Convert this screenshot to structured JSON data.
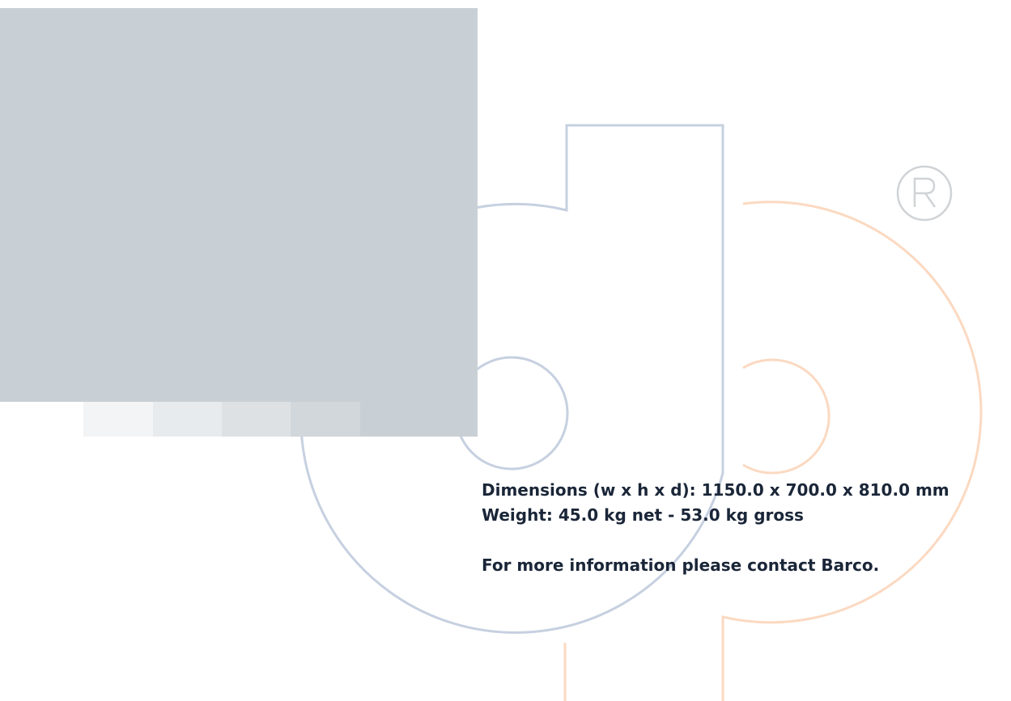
{
  "colors": {
    "photo_placeholder": "#c9d0d5",
    "swatches": [
      "#f3f4f5",
      "#e8ebed",
      "#dde1e4",
      "#d2d7db",
      "#c9d0d5"
    ],
    "watermark_blue": "#c6d0e0",
    "watermark_orange": "#fbd9c1",
    "text": "#1a2638"
  },
  "watermark": {
    "icon": "dp-logo-watermark",
    "registered_mark": "R"
  },
  "specs": {
    "dimensions": "Dimensions (w x h x d): 1150.0 x 700.0 x 810.0 mm",
    "weight": "Weight: 45.0 kg net - 53.0 kg gross",
    "contact": "For more information please contact Barco."
  }
}
